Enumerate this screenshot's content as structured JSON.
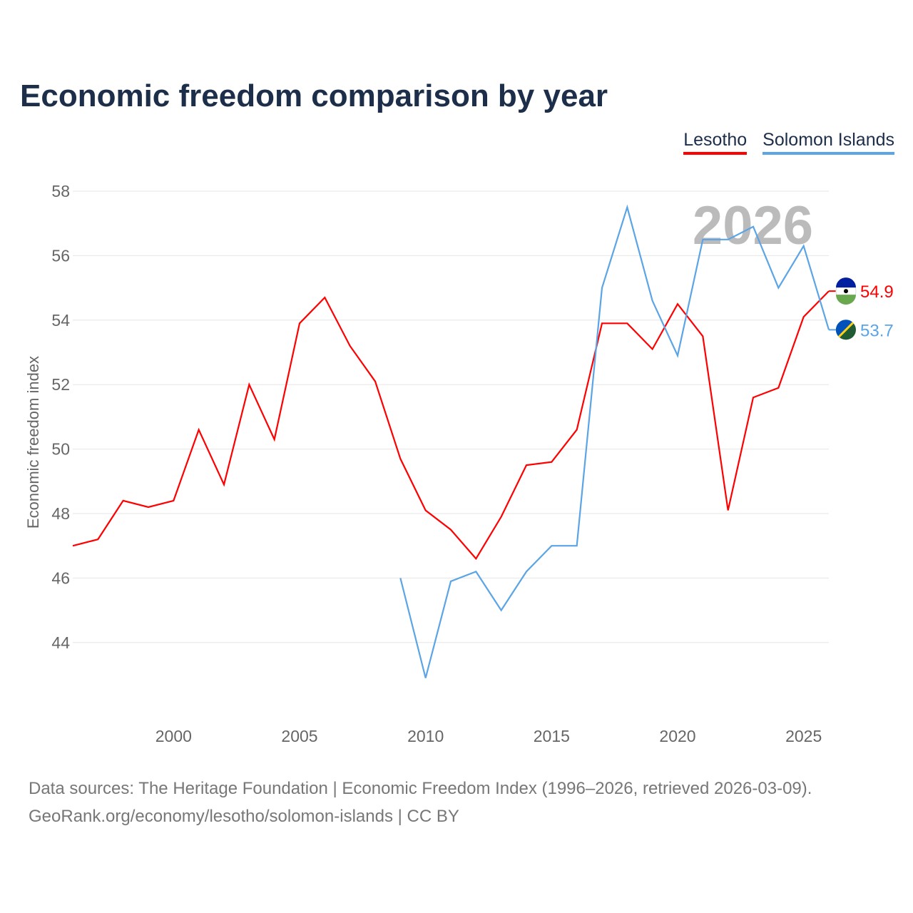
{
  "chart_data": {
    "type": "line",
    "title": "Economic freedom comparison by year",
    "ylabel": "Economic freedom index",
    "xlabel": "",
    "ylim": [
      42,
      58
    ],
    "xlim": [
      1996,
      2026
    ],
    "yticks": [
      44,
      46,
      48,
      50,
      52,
      54,
      56,
      58
    ],
    "xticks": [
      2000,
      2005,
      2010,
      2015,
      2020,
      2025
    ],
    "grid": true,
    "legend_position": "top-right",
    "watermark_year": "2026",
    "series": [
      {
        "name": "Lesotho",
        "color": "#ff0000",
        "end_label": "54.9",
        "x": [
          1996,
          1997,
          1998,
          1999,
          2000,
          2001,
          2002,
          2003,
          2004,
          2005,
          2006,
          2007,
          2008,
          2009,
          2010,
          2011,
          2012,
          2013,
          2014,
          2015,
          2016,
          2017,
          2018,
          2019,
          2020,
          2021,
          2022,
          2023,
          2024,
          2025,
          2026
        ],
        "values": [
          47.0,
          47.2,
          48.4,
          48.2,
          48.4,
          50.6,
          48.9,
          52.0,
          50.3,
          53.9,
          54.7,
          53.2,
          52.1,
          49.7,
          48.1,
          47.5,
          46.6,
          47.9,
          49.5,
          49.6,
          50.6,
          53.9,
          53.9,
          53.1,
          54.5,
          53.5,
          48.1,
          51.6,
          51.9,
          54.1,
          54.9
        ]
      },
      {
        "name": "Solomon Islands",
        "color": "#5ba4e6",
        "end_label": "53.7",
        "x": [
          2009,
          2010,
          2011,
          2012,
          2013,
          2014,
          2015,
          2016,
          2017,
          2018,
          2019,
          2020,
          2021,
          2022,
          2023,
          2024,
          2025,
          2026
        ],
        "values": [
          46.0,
          42.9,
          45.9,
          46.2,
          45.0,
          46.2,
          47.0,
          47.0,
          55.0,
          57.5,
          54.6,
          52.9,
          56.5,
          56.5,
          56.9,
          55.0,
          56.3,
          53.7
        ]
      }
    ]
  },
  "footer": {
    "line1": "Data sources: The Heritage Foundation | Economic Freedom Index (1996–2026, retrieved 2026-03-09).",
    "line2": "GeoRank.org/economy/lesotho/solomon-islands | CC BY"
  }
}
